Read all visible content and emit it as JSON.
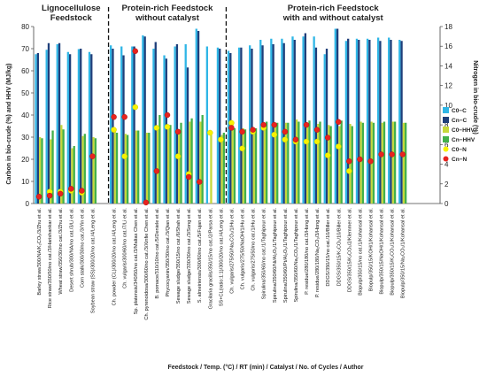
{
  "chart_data": {
    "type": "bar",
    "sections": [
      {
        "title_line1": "Lignocellulose",
        "title_line2": "Feedstock"
      },
      {
        "title_line1": "Protein-rich Feedstock",
        "title_line2": "without catalyst"
      },
      {
        "title_line1": "Protein-rich Feedstock",
        "title_line2": "with and without catalyst"
      }
    ],
    "section_sizes": [
      7,
      11,
      20
    ],
    "categories": [
      "Barley straw/300/NA/K₂CO₃/3/Zhu et al.",
      "Rice straw/350/50/no cat./3/Harishankar et al.",
      "Wheat straw/350/30/no cat./3/Zhu et al.",
      "Desert shrub/300/NA/no cat./3/Li et al.",
      "Corn stalk/300/30/no cat./3/Yin et al.",
      "Soybean straw (SS)/300/20/no cat./4/Leng et al.",
      "",
      "Ch. powder (CL)/300/20/no cat./4/Leng et al.",
      "Ch. vulgaris/300/60/no cat./7/Li et al.",
      "Sp. platensis/340/50/no cat./3/Maltas Chen et al.",
      "Ch. pyrenoidosa/300/60/no cat./3/Xinfie Chen et al.",
      "B. pomace/310/10/no cat./5/Deniele et al.",
      "Phycocyanin/350/30/no cat./3/Qian et al.",
      "Sewage sludge/350/15/no cat./6/Shah et al.",
      "Sewage sludge/330/30/no cat./3/Song et al.",
      "S. almeiriensis/300/60/no cat./5/Fujan et al.",
      "Gracilaria gracilis/350/15/no cat./2/Parsa et al.",
      "SS+CL(ratio:1:1)/300/20/no cat./4/Leng et al.",
      "Ch. vulgaris/275/50/Na₂CO₃/1/Hu et al.",
      "Ch. vulgaris/275/50/NaOH/1/Hu et al.",
      "Ch. vulgaris/275/50/no cat./1/Hu et al.",
      "Spirulina/350/60/no cat./1/Taghipour et al.",
      "Spirulina/350/60/Ni/Al₂O₃/1/Taghipour et al.",
      "Spirulina/350/60/Pt/Al₂O₃/1/Taghipour et al.",
      "Spirulina/350/60/Na₂CO₃/1/Taghipour et al.",
      "P. residue/280/180/no cat./3/Hong et al.",
      "P. residue/280/180/Na₂CO₃/3/Hong et al.",
      "DDGS/350/15/no cat./10/Biller et al.",
      "DDGS/350/15/K₂CO₃/10/Biller et al.",
      "DDGS/350/15/K₂CO₃/2/Klemmer et al.",
      "Biopulp/350/15/no cat./1/Kohansal et al.",
      "Biopulp/350/15/KOH/1/Kohansal et al.",
      "Biopulp/350/15/NaOH/1/Kohansal et al.",
      "Biopulp/350/15/K₂CO₃/1/Kohansal et al.",
      "Biopulp/350/15/Na₂CO₃/1/Kohansal et al.",
      "",
      "",
      ""
    ],
    "series": [
      {
        "name": "C0−C",
        "kind": "bar",
        "axis": "left",
        "values": [
          67.5,
          69.5,
          72.0,
          68.5,
          69.8,
          68.5,
          null,
          71.5,
          71.0,
          71.0,
          76.0,
          70.0,
          67.0,
          71.0,
          72.0,
          79.0,
          71.0,
          70.5,
          69.0,
          70.5,
          71.5,
          74.0,
          74.5,
          74.5,
          75.5,
          75.5,
          75.5,
          67.5,
          79.0,
          73.5,
          74.5,
          74.5,
          75.0,
          75.0,
          74.0,
          null,
          null,
          null
        ]
      },
      {
        "name": "Cn−C",
        "kind": "bar",
        "axis": "left",
        "values": [
          68.0,
          72.5,
          72.5,
          67.5,
          70.0,
          67.5,
          null,
          70.0,
          67.0,
          71.0,
          75.5,
          73.0,
          65.5,
          72.0,
          61.5,
          78.0,
          null,
          70.0,
          68.0,
          70.5,
          70.0,
          71.5,
          72.0,
          72.5,
          74.0,
          77.0,
          70.5,
          70.0,
          79.0,
          74.5,
          74.0,
          74.0,
          73.5,
          74.0,
          73.5,
          null,
          null,
          null
        ]
      },
      {
        "name": "C0−HHV",
        "kind": "bar",
        "axis": "left",
        "values": [
          30.0,
          29.0,
          35.5,
          25.0,
          30.5,
          30.0,
          null,
          33.0,
          31.5,
          33.0,
          32.0,
          35.0,
          34.0,
          33.5,
          37.0,
          37.0,
          31.0,
          31.0,
          35.5,
          34.0,
          34.0,
          36.0,
          36.0,
          36.5,
          38.0,
          36.5,
          36.0,
          35.5,
          35.0,
          36.0,
          37.0,
          37.0,
          36.5,
          37.0,
          36.5,
          null,
          null,
          null
        ]
      },
      {
        "name": "Cn−HHV",
        "kind": "bar",
        "axis": "left",
        "values": [
          29.5,
          33.0,
          33.5,
          26.0,
          31.5,
          29.5,
          null,
          32.0,
          31.0,
          33.0,
          32.0,
          40.0,
          35.5,
          36.5,
          38.5,
          40.0,
          null,
          32.0,
          34.0,
          33.5,
          34.0,
          37.0,
          36.5,
          36.5,
          37.0,
          37.5,
          37.0,
          35.0,
          37.5,
          35.0,
          36.5,
          36.5,
          37.0,
          37.0,
          36.5,
          null,
          null,
          null
        ]
      },
      {
        "name": "C0−N",
        "kind": "point",
        "axis": "right",
        "values": [
          null,
          1.2,
          1.2,
          1.3,
          1.1,
          null,
          null,
          7.5,
          4.8,
          9.8,
          null,
          7.7,
          7.8,
          4.8,
          3.0,
          null,
          7.2,
          6.5,
          8.2,
          5.6,
          7.3,
          7.7,
          7.0,
          6.5,
          6.3,
          6.3,
          6.3,
          4.9,
          5.8,
          3.3,
          null,
          null,
          null,
          null,
          null,
          null,
          null,
          null
        ]
      },
      {
        "name": "Cn−N",
        "kind": "point",
        "axis": "right",
        "values": [
          0.7,
          0.8,
          1.0,
          1.5,
          1.3,
          4.8,
          null,
          8.8,
          8.8,
          15.5,
          0.1,
          3.3,
          9.0,
          7.3,
          2.7,
          2.2,
          null,
          null,
          7.7,
          7.3,
          7.5,
          8.0,
          8.0,
          7.3,
          6.5,
          8.0,
          7.5,
          6.7,
          8.3,
          4.3,
          4.5,
          4.3,
          5.0,
          5.0,
          5.0,
          null,
          null,
          null
        ]
      }
    ],
    "colors": {
      "C0−C": "#2fb6e6",
      "Cn−C": "#1f3f7a",
      "C0−HHV": "#c6d83a",
      "Cn−HHV": "#42b04a",
      "C0−N": "#f7f200",
      "Cn−N": "#e8231e"
    },
    "y_left": {
      "label": "Carbon in bio-crude (%) and HHV (MJ/kg)",
      "ylim": [
        0,
        80
      ],
      "ticks": [
        0,
        10,
        20,
        30,
        40,
        50,
        60,
        70,
        80
      ]
    },
    "y_right": {
      "label": "Nitrogen in bio-crude (%)",
      "ylim": [
        0,
        18
      ],
      "ticks": [
        0,
        2,
        4,
        6,
        8,
        10,
        12,
        14,
        16,
        18
      ]
    },
    "xlabel": "Feedstock / Temp. (°C) / RT (min) / Catalyst / No. of Cycles / Author",
    "legend_position": "right",
    "grid": false
  }
}
